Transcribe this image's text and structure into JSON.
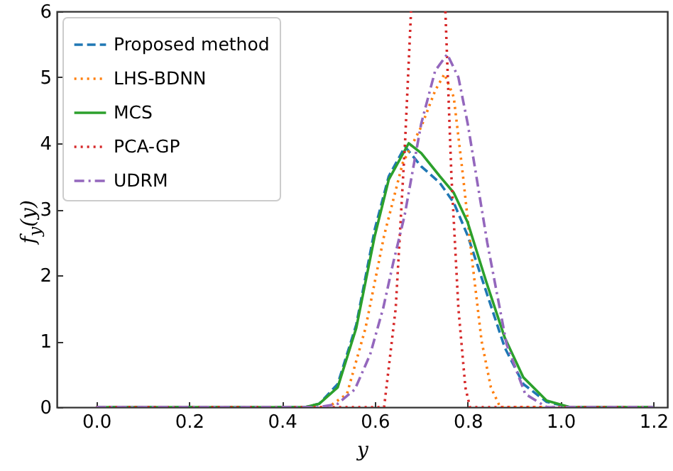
{
  "chart_data": {
    "type": "line",
    "xlabel": "y",
    "ylabel": "f$_{y}$(y)",
    "xlim": [
      -0.085,
      1.23
    ],
    "ylim": [
      0,
      6
    ],
    "xticks": [
      {
        "value": 0,
        "label": "0.0"
      },
      0.2,
      0.4,
      0.6,
      0.8,
      {
        "value": 1,
        "label": "1.0"
      },
      1.2
    ],
    "yticks": [
      0,
      1,
      2,
      3,
      4,
      5,
      6
    ],
    "grid": false,
    "legend": "top left",
    "series": [
      {
        "name": "Proposed method",
        "color": "#1f77b4",
        "line_style": "dashed",
        "x": [
          0,
          0.45,
          0.48,
          0.52,
          0.56,
          0.6,
          0.63,
          0.665,
          0.7,
          0.74,
          0.77,
          0.8,
          0.84,
          0.88,
          0.92,
          0.97,
          1.02,
          1.2
        ],
        "values": [
          0,
          0,
          0.05,
          0.35,
          1.25,
          2.7,
          3.5,
          3.95,
          3.65,
          3.4,
          3.1,
          2.6,
          1.75,
          0.9,
          0.35,
          0.08,
          0,
          0
        ]
      },
      {
        "name": "LHS-BDNN",
        "color": "#ff7f0e",
        "line_style": "dotted",
        "x": [
          0,
          0.5,
          0.54,
          0.58,
          0.62,
          0.66,
          0.7,
          0.73,
          0.75,
          0.77,
          0.79,
          0.81,
          0.83,
          0.85,
          0.87,
          1.2
        ],
        "values": [
          0,
          0,
          0.2,
          1.2,
          2.6,
          3.7,
          4.25,
          4.8,
          5.05,
          4.7,
          3.5,
          2.2,
          1,
          0.3,
          0,
          0
        ]
      },
      {
        "name": "MCS",
        "color": "#2ca02c",
        "line_style": "solid",
        "x": [
          0,
          0.45,
          0.48,
          0.52,
          0.56,
          0.6,
          0.63,
          0.673,
          0.7,
          0.74,
          0.77,
          0.8,
          0.84,
          0.88,
          0.92,
          0.97,
          1.02,
          1.2
        ],
        "values": [
          0,
          0,
          0.05,
          0.3,
          1.2,
          2.6,
          3.45,
          4,
          3.85,
          3.5,
          3.25,
          2.8,
          1.9,
          1.05,
          0.45,
          0.1,
          0,
          0
        ]
      },
      {
        "name": "PCA-GP",
        "color": "#d62728",
        "line_style": "dotted",
        "x": [
          0,
          0.62,
          0.645,
          0.665,
          0.678,
          0.715,
          0.752,
          0.765,
          0.78,
          0.795,
          0.805,
          1.2
        ],
        "values": [
          0,
          0,
          1.5,
          4,
          6,
          null,
          6,
          3.5,
          1.5,
          0.3,
          0,
          0
        ]
      },
      {
        "name": "UDRM",
        "color": "#9467bd",
        "line_style": "dashdot",
        "x": [
          0,
          0.48,
          0.52,
          0.557,
          0.59,
          0.618,
          0.64,
          0.664,
          0.7,
          0.73,
          0.756,
          0.78,
          0.8,
          0.842,
          0.884,
          0.924,
          0.97,
          1.2
        ],
        "values": [
          0,
          0,
          0.05,
          0.27,
          0.8,
          1.5,
          2.2,
          2.9,
          4.3,
          5.1,
          5.35,
          5,
          4.3,
          2.5,
          0.95,
          0.2,
          0,
          0
        ]
      }
    ]
  }
}
